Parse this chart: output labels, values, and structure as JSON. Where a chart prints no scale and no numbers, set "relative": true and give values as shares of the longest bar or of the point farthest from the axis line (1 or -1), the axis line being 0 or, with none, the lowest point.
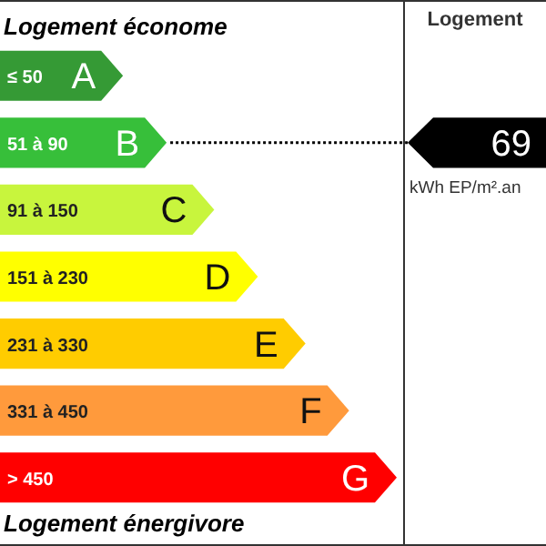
{
  "chart_data": {
    "type": "bar",
    "orientation": "horizontal",
    "relative": true,
    "title": "Logement économe",
    "categories": [
      "A",
      "B",
      "C",
      "D",
      "E",
      "F",
      "G"
    ],
    "values": [
      0.31,
      0.42,
      0.54,
      0.65,
      0.77,
      0.88,
      1
    ],
    "colors": [
      "#359a35",
      "#37bf3a",
      "#c8f53d",
      "#ffff00",
      "#ffcc00",
      "#ff9a3c",
      "#ff0000"
    ],
    "ref_lines": [
      {
        "axis": "y",
        "value": "B",
        "label": "69",
        "color": "#000000",
        "line_style": "dotted"
      }
    ],
    "annotations": [
      "≤ 50",
      "51 à 90",
      "91 à 150",
      "151 à 230",
      "231 à 330",
      "331 à 450",
      "> 450",
      "Logement",
      "kWh EP/m².an",
      "Logement énergivore"
    ]
  }
}
